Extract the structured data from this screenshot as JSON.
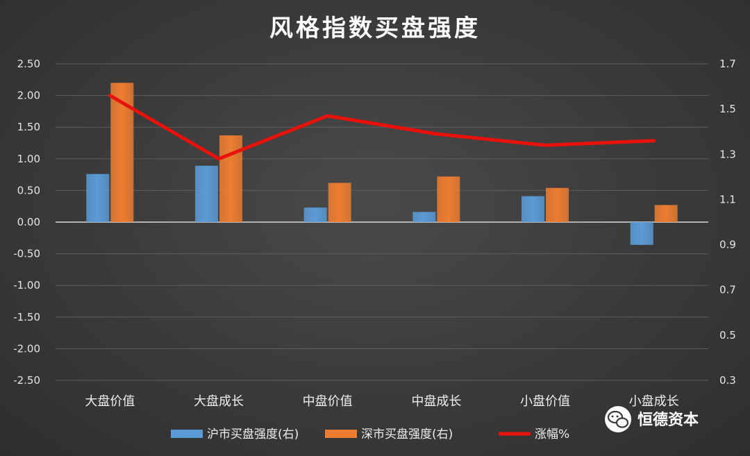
{
  "chart_data": {
    "type": "bar",
    "title": "风格指数买盘强度",
    "categories": [
      "大盘价值",
      "大盘成长",
      "中盘价值",
      "中盘成长",
      "小盘价值",
      "小盘成长"
    ],
    "y_left": {
      "ylim": [
        -2.5,
        2.5
      ],
      "ticks": [
        "2.50",
        "2.00",
        "1.50",
        "1.00",
        "0.50",
        "0.00",
        "-0.50",
        "-1.00",
        "-1.50",
        "-2.00",
        "-2.50"
      ]
    },
    "y_right": {
      "ylim": [
        0.3,
        1.7
      ],
      "ticks": [
        "1.7",
        "1.5",
        "1.3",
        "1.1",
        "0.9",
        "0.7",
        "0.5",
        "0.3"
      ]
    },
    "series": [
      {
        "name": "沪市买盘强度(右)",
        "kind": "bar",
        "axis": "left",
        "color": "#5b9bd5",
        "values": [
          0.76,
          0.89,
          0.23,
          0.16,
          0.41,
          -0.36
        ]
      },
      {
        "name": "深市买盘强度(右)",
        "kind": "bar",
        "axis": "left",
        "color": "#ed7d31",
        "values": [
          2.2,
          1.37,
          0.62,
          0.72,
          0.54,
          0.27
        ]
      },
      {
        "name": "涨幅%",
        "kind": "line",
        "axis": "right",
        "color": "#e8120c",
        "values": [
          1.56,
          1.28,
          1.47,
          1.39,
          1.34,
          1.36
        ]
      }
    ],
    "grid": true,
    "legend": "bottom"
  },
  "watermark": {
    "text": "恒德资本",
    "icon": "wechat-icon"
  }
}
